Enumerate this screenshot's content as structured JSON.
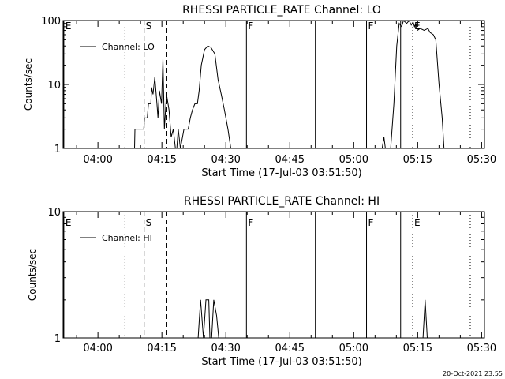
{
  "chart_data": [
    {
      "type": "line",
      "title": "RHESSI PARTICLE_RATE Channel: LO",
      "xlabel": "Start Time (17-Jul-03 03:51:50)",
      "ylabel": "Counts/sec",
      "yscale": "log",
      "ylim": [
        1,
        100
      ],
      "xlim": [
        "03:51:50",
        "05:30:40"
      ],
      "x_ticks": [
        "04:00",
        "04:15",
        "04:30",
        "04:45",
        "05:00",
        "05:15",
        "05:30"
      ],
      "y_ticks": [
        "1",
        "10",
        "100"
      ],
      "grid": false,
      "legend": "top-left",
      "series": [
        {
          "name": "Channel: LO",
          "points": [
            [
              "04:08:35",
              1
            ],
            [
              "04:08:40",
              2
            ],
            [
              "04:10:45",
              2
            ],
            [
              "04:10:55",
              3
            ],
            [
              "04:11:35",
              3
            ],
            [
              "04:11:50",
              5
            ],
            [
              "04:12:25",
              5
            ],
            [
              "04:12:35",
              9
            ],
            [
              "04:12:55",
              7
            ],
            [
              "04:13:20",
              13
            ],
            [
              "04:13:50",
              5
            ],
            [
              "04:14:05",
              3
            ],
            [
              "04:14:25",
              8
            ],
            [
              "04:14:55",
              5
            ],
            [
              "04:15:15",
              25
            ],
            [
              "04:15:35",
              2
            ],
            [
              "04:16:05",
              7
            ],
            [
              "04:16:40",
              4
            ],
            [
              "04:17:10",
              1.5
            ],
            [
              "04:17:40",
              2
            ],
            [
              "04:18:10",
              1
            ],
            [
              "04:18:30",
              1
            ],
            [
              "04:18:50",
              2
            ],
            [
              "04:19:20",
              1
            ],
            [
              "04:19:50",
              1.5
            ],
            [
              "04:20:10",
              2
            ],
            [
              "04:21:10",
              2
            ],
            [
              "04:21:40",
              3
            ],
            [
              "04:22:10",
              4
            ],
            [
              "04:22:45",
              5
            ],
            [
              "04:23:20",
              5
            ],
            [
              "04:23:45",
              8
            ],
            [
              "04:24:15",
              20
            ],
            [
              "04:25:00",
              35
            ],
            [
              "04:25:45",
              40
            ],
            [
              "04:26:30",
              38
            ],
            [
              "04:27:25",
              30
            ],
            [
              "04:28:10",
              12
            ],
            [
              "04:28:55",
              7
            ],
            [
              "04:29:40",
              4
            ],
            [
              "04:30:30",
              2
            ],
            [
              "04:31:10",
              1
            ]
          ]
        },
        {
          "name": "Channel: LO",
          "points": [
            [
              "05:06:40",
              1
            ],
            [
              "05:07:05",
              1.5
            ],
            [
              "05:07:25",
              1
            ],
            [
              "05:08:40",
              1
            ],
            [
              "05:09:25",
              5
            ],
            [
              "05:10:05",
              40
            ],
            [
              "05:10:40",
              90
            ],
            [
              "05:11:15",
              80
            ],
            [
              "05:11:40",
              100
            ],
            [
              "05:12:25",
              90
            ],
            [
              "05:13:00",
              100
            ],
            [
              "05:13:30",
              85
            ],
            [
              "05:13:55",
              95
            ],
            [
              "05:14:15",
              80
            ],
            [
              "05:14:35",
              90
            ],
            [
              "05:14:55",
              70
            ],
            [
              "05:15:35",
              75
            ],
            [
              "05:16:30",
              70
            ],
            [
              "05:17:25",
              75
            ],
            [
              "05:17:55",
              65
            ],
            [
              "05:18:40",
              60
            ],
            [
              "05:19:15",
              50
            ],
            [
              "05:20:00",
              10
            ],
            [
              "05:20:45",
              3
            ],
            [
              "05:21:10",
              1
            ]
          ]
        }
      ],
      "vertical_lines": [
        {
          "time": "03:52:00",
          "style": "solid",
          "label": "E"
        },
        {
          "time": "04:06:20",
          "style": "dotted",
          "label": ""
        },
        {
          "time": "04:10:50",
          "style": "dashed",
          "label": "S"
        },
        {
          "time": "04:16:10",
          "style": "dashed",
          "label": ""
        },
        {
          "time": "04:34:50",
          "style": "solid",
          "label": "F"
        },
        {
          "time": "04:51:00",
          "style": "solid",
          "label": ""
        },
        {
          "time": "05:03:00",
          "style": "solid",
          "label": "F"
        },
        {
          "time": "05:11:00",
          "style": "solid",
          "label": ""
        },
        {
          "time": "05:13:50",
          "style": "dotted",
          "label": "E"
        },
        {
          "time": "05:27:20",
          "style": "dotted",
          "label": ""
        }
      ]
    },
    {
      "type": "line",
      "title": "RHESSI PARTICLE_RATE Channel: HI",
      "xlabel": "Start Time (17-Jul-03 03:51:50)",
      "ylabel": "Counts/sec",
      "yscale": "log",
      "ylim": [
        1,
        10
      ],
      "xlim": [
        "03:51:50",
        "05:30:40"
      ],
      "x_ticks": [
        "04:00",
        "04:15",
        "04:30",
        "04:45",
        "05:00",
        "05:15",
        "05:30"
      ],
      "y_ticks": [
        "1",
        "10"
      ],
      "grid": false,
      "legend": "top-left",
      "series": [
        {
          "name": "Channel: HI",
          "points": [
            [
              "04:23:30",
              1
            ],
            [
              "04:24:05",
              2
            ],
            [
              "04:24:45",
              1
            ],
            [
              "04:25:20",
              2
            ],
            [
              "04:26:00",
              2
            ],
            [
              "04:26:15",
              1
            ],
            [
              "04:26:40",
              1
            ],
            [
              "04:27:10",
              2
            ],
            [
              "04:27:50",
              1.5
            ],
            [
              "04:28:20",
              1
            ]
          ]
        },
        {
          "name": "Channel: HI",
          "points": [
            [
              "05:16:15",
              1
            ],
            [
              "05:16:45",
              2
            ],
            [
              "05:17:15",
              1
            ]
          ]
        }
      ],
      "vertical_lines": [
        {
          "time": "03:52:00",
          "style": "solid",
          "label": "E"
        },
        {
          "time": "04:06:20",
          "style": "dotted",
          "label": ""
        },
        {
          "time": "04:10:50",
          "style": "dashed",
          "label": "S"
        },
        {
          "time": "04:16:10",
          "style": "dashed",
          "label": ""
        },
        {
          "time": "04:34:50",
          "style": "solid",
          "label": "F"
        },
        {
          "time": "04:51:00",
          "style": "solid",
          "label": ""
        },
        {
          "time": "05:03:00",
          "style": "solid",
          "label": "F"
        },
        {
          "time": "05:11:00",
          "style": "solid",
          "label": ""
        },
        {
          "time": "05:13:50",
          "style": "dotted",
          "label": "E"
        },
        {
          "time": "05:27:20",
          "style": "dotted",
          "label": ""
        }
      ]
    }
  ],
  "footer": {
    "timestamp": "20-Oct-2021 23:55"
  }
}
